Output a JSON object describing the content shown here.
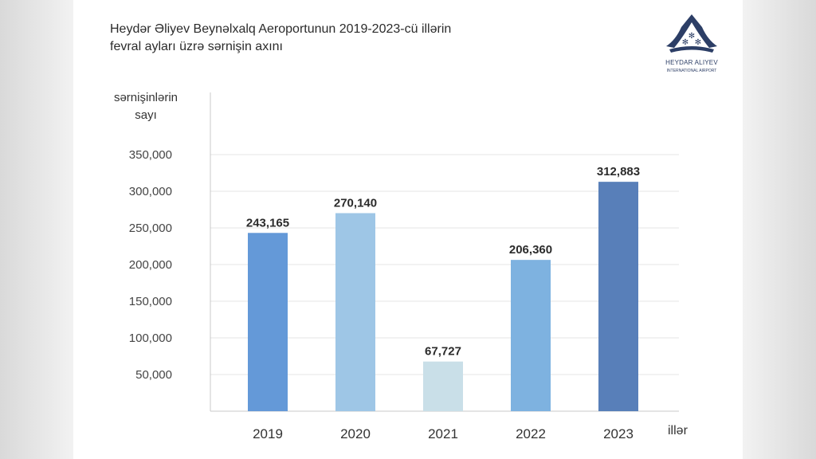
{
  "title_line1": "Heydər Əliyev Beynəlxalq Aeroportunun 2019-2023-cü illərin",
  "title_line2": "fevral ayları üzrə sərnişin axını",
  "logo": {
    "name": "HEYDAR ALIYEV",
    "subtitle": "INTERNATIONAL AIRPORT",
    "color": "#2c3e66"
  },
  "chart_data": {
    "type": "bar",
    "title": "Heydər Əliyev Beynəlxalq Aeroportunun 2019-2023-cü illərin fevral ayları üzrə sərnişin axını",
    "ylabel_lines": [
      "sərnişinlərin",
      "sayı"
    ],
    "xlabel": "illər",
    "categories": [
      "2019",
      "2020",
      "2021",
      "2022",
      "2023"
    ],
    "values": [
      243165,
      270140,
      67727,
      206360,
      312883
    ],
    "value_labels": [
      "243,165",
      "270,140",
      "67,727",
      "206,360",
      "312,883"
    ],
    "bar_colors": [
      "#6499d8",
      "#9ec6e6",
      "#c9dfe8",
      "#7eb2e0",
      "#587fb9"
    ],
    "yticks": [
      50000,
      100000,
      150000,
      200000,
      250000,
      300000,
      350000
    ],
    "ytick_labels": [
      "50,000",
      "100,000",
      "150,000",
      "200,000",
      "250,000",
      "300,000",
      "350,000"
    ],
    "ylim": [
      0,
      350000
    ],
    "grid": true,
    "legend": "none"
  }
}
